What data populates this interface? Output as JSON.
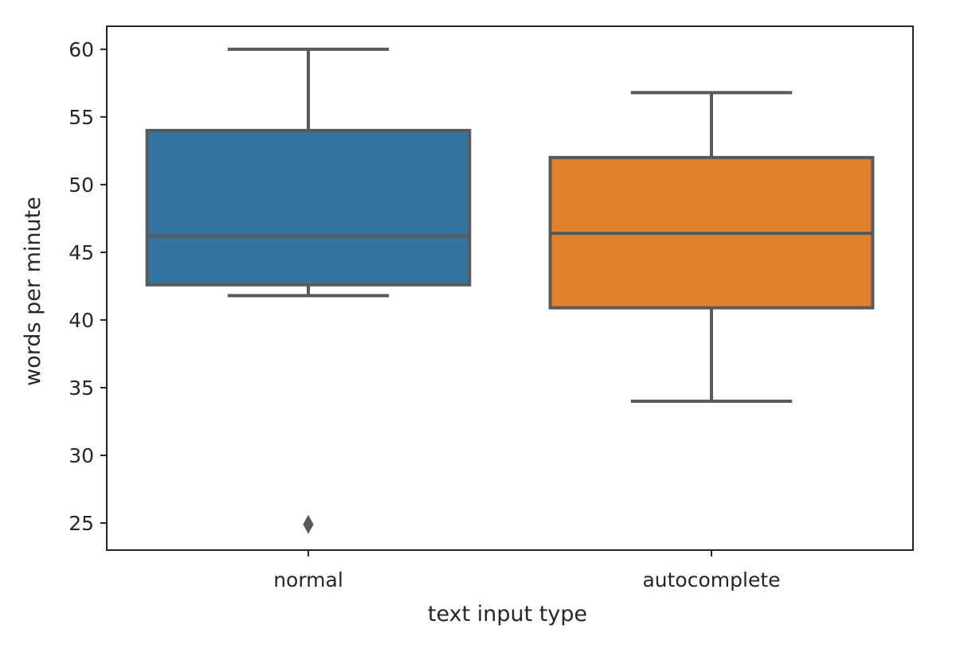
{
  "chart_data": {
    "type": "box",
    "xlabel": "text input type",
    "ylabel": "words per minute",
    "ylim": [
      23,
      61.7
    ],
    "yticks": [
      25,
      30,
      35,
      40,
      45,
      50,
      55,
      60
    ],
    "grid": false,
    "legend": "none",
    "categories": [
      "normal",
      "autocomplete"
    ],
    "boxes": [
      {
        "category": "normal",
        "whisker_low": 41.8,
        "q1": 42.6,
        "median": 46.2,
        "q3": 54.0,
        "whisker_high": 60.0,
        "outliers": [
          24.9
        ],
        "color": "#3274a1"
      },
      {
        "category": "autocomplete",
        "whisker_low": 34.0,
        "q1": 40.9,
        "median": 46.4,
        "q3": 52.0,
        "whisker_high": 56.8,
        "outliers": [],
        "color": "#e1812c"
      }
    ],
    "line_color": "#595959",
    "axes_color": "#262626"
  }
}
